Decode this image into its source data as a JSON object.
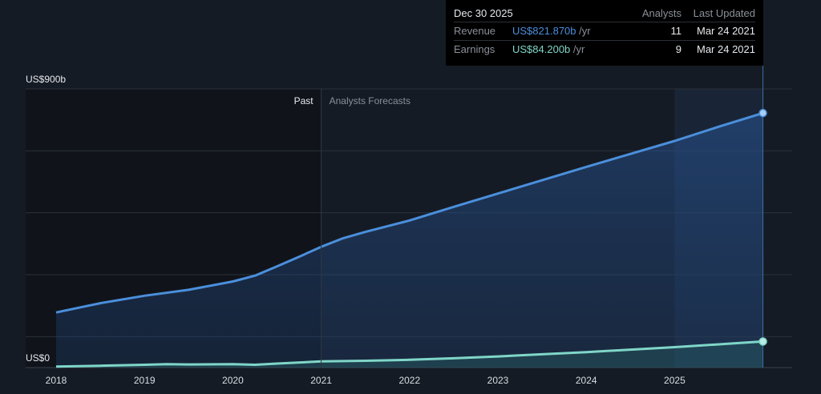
{
  "tooltip": {
    "date": "Dec 30 2025",
    "analysts_header": "Analysts",
    "updated_header": "Last Updated",
    "rows": [
      {
        "label": "Revenue",
        "value": "US$821.870b",
        "unit": "/yr",
        "analysts": "11",
        "updated": "Mar 24 2021",
        "color": "#4b8fdc"
      },
      {
        "label": "Earnings",
        "value": "US$84.200b",
        "unit": "/yr",
        "analysts": "9",
        "updated": "Mar 24 2021",
        "color": "#7fd6c8"
      }
    ]
  },
  "regions": {
    "past": "Past",
    "forecast": "Analysts Forecasts"
  },
  "colors": {
    "background": "#151b24",
    "past_shade": "#10141a",
    "revenue": "#4b8fdc",
    "earnings": "#7fd6c8"
  },
  "chart_data": {
    "type": "line",
    "ylim": [
      0,
      900
    ],
    "y_ticks": [
      {
        "value": 900,
        "label": "US$900b"
      },
      {
        "value": 0,
        "label": "US$0"
      }
    ],
    "x_ticks": [
      "2018",
      "2019",
      "2020",
      "2021",
      "2022",
      "2023",
      "2024",
      "2025"
    ],
    "xlim": [
      2018,
      2026
    ],
    "past_until": 2021,
    "series": [
      {
        "name": "Revenue",
        "color": "#4b8fdc",
        "points": [
          [
            2018.0,
            178
          ],
          [
            2018.5,
            208
          ],
          [
            2019.0,
            232
          ],
          [
            2019.5,
            251
          ],
          [
            2020.0,
            278
          ],
          [
            2020.25,
            297
          ],
          [
            2020.5,
            327
          ],
          [
            2020.75,
            358
          ],
          [
            2021.0,
            390
          ],
          [
            2021.25,
            418
          ],
          [
            2021.5,
            438
          ],
          [
            2022.0,
            475
          ],
          [
            2022.5,
            519
          ],
          [
            2023.0,
            562
          ],
          [
            2023.5,
            605
          ],
          [
            2024.0,
            648
          ],
          [
            2024.5,
            690
          ],
          [
            2025.0,
            732
          ],
          [
            2025.5,
            778
          ],
          [
            2026.0,
            822
          ]
        ]
      },
      {
        "name": "Earnings",
        "color": "#7fd6c8",
        "points": [
          [
            2018.0,
            3
          ],
          [
            2018.5,
            6
          ],
          [
            2019.0,
            9
          ],
          [
            2019.25,
            11
          ],
          [
            2019.5,
            10
          ],
          [
            2020.0,
            11
          ],
          [
            2020.25,
            9
          ],
          [
            2020.5,
            13
          ],
          [
            2021.0,
            20
          ],
          [
            2021.5,
            22
          ],
          [
            2022.0,
            25
          ],
          [
            2022.5,
            30
          ],
          [
            2023.0,
            36
          ],
          [
            2023.5,
            43
          ],
          [
            2024.0,
            50
          ],
          [
            2024.5,
            58
          ],
          [
            2025.0,
            66
          ],
          [
            2025.5,
            75
          ],
          [
            2026.0,
            84.2
          ]
        ]
      }
    ]
  }
}
